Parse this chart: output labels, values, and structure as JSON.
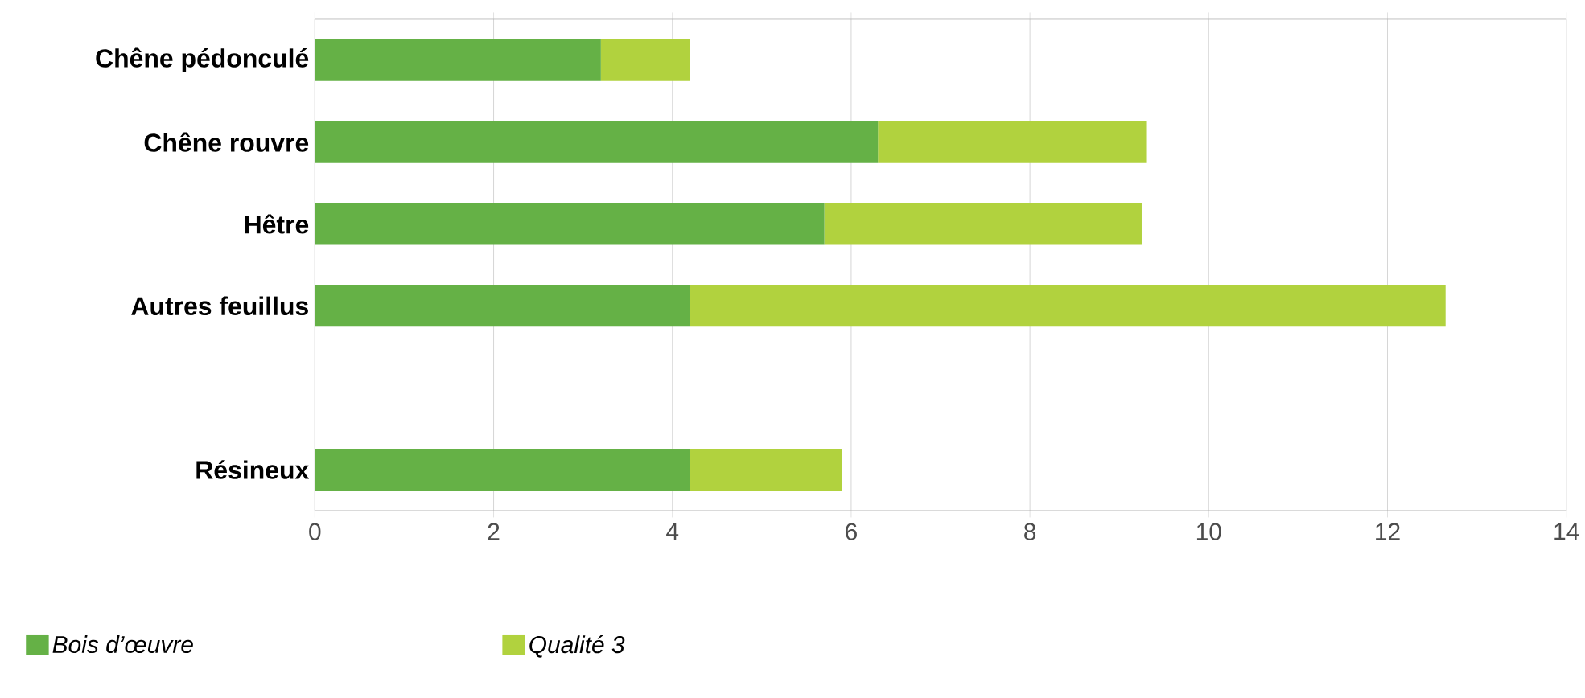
{
  "chart_data": {
    "type": "bar",
    "orientation": "horizontal",
    "stacked": true,
    "categories": [
      "Chêne pédonculé",
      "Chêne rouvre",
      "Hêtre",
      "Autres feuillus",
      null,
      "Résineux"
    ],
    "series": [
      {
        "name": "Bois d’œuvre",
        "color": "#65b146",
        "values": [
          3.2,
          6.3,
          5.7,
          4.2,
          null,
          4.2
        ]
      },
      {
        "name": "Qualité 3",
        "color": "#b1d23e",
        "values": [
          1.0,
          3.0,
          3.55,
          8.45,
          null,
          1.7
        ]
      }
    ],
    "xlim": [
      0,
      14
    ],
    "xticks": [
      0,
      2,
      4,
      6,
      8,
      10,
      12,
      14
    ],
    "grid": "x",
    "legend": "bottom left"
  }
}
